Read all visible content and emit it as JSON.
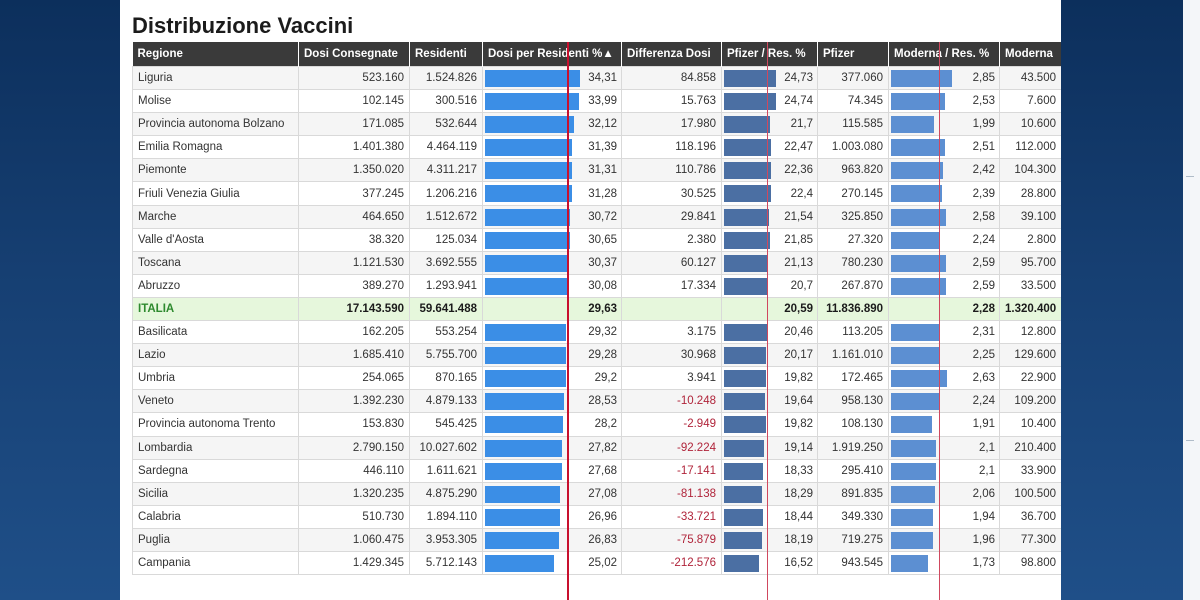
{
  "title": "Distribuzione Vaccini",
  "columns": [
    "Regione",
    "Dosi Consegnate",
    "Residenti",
    "Dosi per Residenti %▲",
    "Differenza Dosi",
    "Pfizer / Res. %",
    "Pfizer",
    "Moderna / Res. %",
    "Moderna"
  ],
  "rows": [
    {
      "regione": "Liguria",
      "consegnate": "523.160",
      "residenti": "1.524.826",
      "pct": "34,31",
      "pct_v": 34.31,
      "diff": "84.858",
      "pf_pct": "24,73",
      "pf_v": 24.73,
      "pfizer": "377.060",
      "mo_pct": "2,85",
      "mo_v": 2.85,
      "moderna": "43.500"
    },
    {
      "regione": "Molise",
      "consegnate": "102.145",
      "residenti": "300.516",
      "pct": "33,99",
      "pct_v": 33.99,
      "diff": "15.763",
      "pf_pct": "24,74",
      "pf_v": 24.74,
      "pfizer": "74.345",
      "mo_pct": "2,53",
      "mo_v": 2.53,
      "moderna": "7.600"
    },
    {
      "regione": "Provincia autonoma Bolzano",
      "consegnate": "171.085",
      "residenti": "532.644",
      "pct": "32,12",
      "pct_v": 32.12,
      "diff": "17.980",
      "pf_pct": "21,7",
      "pf_v": 21.7,
      "pfizer": "115.585",
      "mo_pct": "1,99",
      "mo_v": 1.99,
      "moderna": "10.600"
    },
    {
      "regione": "Emilia Romagna",
      "consegnate": "1.401.380",
      "residenti": "4.464.119",
      "pct": "31,39",
      "pct_v": 31.39,
      "diff": "118.196",
      "pf_pct": "22,47",
      "pf_v": 22.47,
      "pfizer": "1.003.080",
      "mo_pct": "2,51",
      "mo_v": 2.51,
      "moderna": "112.000"
    },
    {
      "regione": "Piemonte",
      "consegnate": "1.350.020",
      "residenti": "4.311.217",
      "pct": "31,31",
      "pct_v": 31.31,
      "diff": "110.786",
      "pf_pct": "22,36",
      "pf_v": 22.36,
      "pfizer": "963.820",
      "mo_pct": "2,42",
      "mo_v": 2.42,
      "moderna": "104.300"
    },
    {
      "regione": "Friuli Venezia Giulia",
      "consegnate": "377.245",
      "residenti": "1.206.216",
      "pct": "31,28",
      "pct_v": 31.28,
      "diff": "30.525",
      "pf_pct": "22,4",
      "pf_v": 22.4,
      "pfizer": "270.145",
      "mo_pct": "2,39",
      "mo_v": 2.39,
      "moderna": "28.800"
    },
    {
      "regione": "Marche",
      "consegnate": "464.650",
      "residenti": "1.512.672",
      "pct": "30,72",
      "pct_v": 30.72,
      "diff": "29.841",
      "pf_pct": "21,54",
      "pf_v": 21.54,
      "pfizer": "325.850",
      "mo_pct": "2,58",
      "mo_v": 2.58,
      "moderna": "39.100"
    },
    {
      "regione": "Valle d'Aosta",
      "consegnate": "38.320",
      "residenti": "125.034",
      "pct": "30,65",
      "pct_v": 30.65,
      "diff": "2.380",
      "pf_pct": "21,85",
      "pf_v": 21.85,
      "pfizer": "27.320",
      "mo_pct": "2,24",
      "mo_v": 2.24,
      "moderna": "2.800"
    },
    {
      "regione": "Toscana",
      "consegnate": "1.121.530",
      "residenti": "3.692.555",
      "pct": "30,37",
      "pct_v": 30.37,
      "diff": "60.127",
      "pf_pct": "21,13",
      "pf_v": 21.13,
      "pfizer": "780.230",
      "mo_pct": "2,59",
      "mo_v": 2.59,
      "moderna": "95.700"
    },
    {
      "regione": "Abruzzo",
      "consegnate": "389.270",
      "residenti": "1.293.941",
      "pct": "30,08",
      "pct_v": 30.08,
      "diff": "17.334",
      "pf_pct": "20,7",
      "pf_v": 20.7,
      "pfizer": "267.870",
      "mo_pct": "2,59",
      "mo_v": 2.59,
      "moderna": "33.500"
    },
    {
      "regione": "ITALIA",
      "consegnate": "17.143.590",
      "residenti": "59.641.488",
      "pct": "29,63",
      "pct_v": null,
      "diff": "",
      "pf_pct": "20,59",
      "pf_v": null,
      "pfizer": "11.836.890",
      "mo_pct": "2,28",
      "mo_v": null,
      "moderna": "1.320.400",
      "total": true
    },
    {
      "regione": "Basilicata",
      "consegnate": "162.205",
      "residenti": "553.254",
      "pct": "29,32",
      "pct_v": 29.32,
      "diff": "3.175",
      "pf_pct": "20,46",
      "pf_v": 20.46,
      "pfizer": "113.205",
      "mo_pct": "2,31",
      "mo_v": 2.31,
      "moderna": "12.800"
    },
    {
      "regione": "Lazio",
      "consegnate": "1.685.410",
      "residenti": "5.755.700",
      "pct": "29,28",
      "pct_v": 29.28,
      "diff": "30.968",
      "pf_pct": "20,17",
      "pf_v": 20.17,
      "pfizer": "1.161.010",
      "mo_pct": "2,25",
      "mo_v": 2.25,
      "moderna": "129.600"
    },
    {
      "regione": "Umbria",
      "consegnate": "254.065",
      "residenti": "870.165",
      "pct": "29,2",
      "pct_v": 29.2,
      "diff": "3.941",
      "pf_pct": "19,82",
      "pf_v": 19.82,
      "pfizer": "172.465",
      "mo_pct": "2,63",
      "mo_v": 2.63,
      "moderna": "22.900"
    },
    {
      "regione": "Veneto",
      "consegnate": "1.392.230",
      "residenti": "4.879.133",
      "pct": "28,53",
      "pct_v": 28.53,
      "diff": "-10.248",
      "pf_pct": "19,64",
      "pf_v": 19.64,
      "pfizer": "958.130",
      "mo_pct": "2,24",
      "mo_v": 2.24,
      "moderna": "109.200"
    },
    {
      "regione": "Provincia autonoma Trento",
      "consegnate": "153.830",
      "residenti": "545.425",
      "pct": "28,2",
      "pct_v": 28.2,
      "diff": "-2.949",
      "pf_pct": "19,82",
      "pf_v": 19.82,
      "pfizer": "108.130",
      "mo_pct": "1,91",
      "mo_v": 1.91,
      "moderna": "10.400"
    },
    {
      "regione": "Lombardia",
      "consegnate": "2.790.150",
      "residenti": "10.027.602",
      "pct": "27,82",
      "pct_v": 27.82,
      "diff": "-92.224",
      "pf_pct": "19,14",
      "pf_v": 19.14,
      "pfizer": "1.919.250",
      "mo_pct": "2,1",
      "mo_v": 2.1,
      "moderna": "210.400"
    },
    {
      "regione": "Sardegna",
      "consegnate": "446.110",
      "residenti": "1.611.621",
      "pct": "27,68",
      "pct_v": 27.68,
      "diff": "-17.141",
      "pf_pct": "18,33",
      "pf_v": 18.33,
      "pfizer": "295.410",
      "mo_pct": "2,1",
      "mo_v": 2.1,
      "moderna": "33.900"
    },
    {
      "regione": "Sicilia",
      "consegnate": "1.320.235",
      "residenti": "4.875.290",
      "pct": "27,08",
      "pct_v": 27.08,
      "diff": "-81.138",
      "pf_pct": "18,29",
      "pf_v": 18.29,
      "pfizer": "891.835",
      "mo_pct": "2,06",
      "mo_v": 2.06,
      "moderna": "100.500"
    },
    {
      "regione": "Calabria",
      "consegnate": "510.730",
      "residenti": "1.894.110",
      "pct": "26,96",
      "pct_v": 26.96,
      "diff": "-33.721",
      "pf_pct": "18,44",
      "pf_v": 18.44,
      "pfizer": "349.330",
      "mo_pct": "1,94",
      "mo_v": 1.94,
      "moderna": "36.700"
    },
    {
      "regione": "Puglia",
      "consegnate": "1.060.475",
      "residenti": "3.953.305",
      "pct": "26,83",
      "pct_v": 26.83,
      "diff": "-75.879",
      "pf_pct": "18,19",
      "pf_v": 18.19,
      "pfizer": "719.275",
      "mo_pct": "1,96",
      "mo_v": 1.96,
      "moderna": "77.300"
    },
    {
      "regione": "Campania",
      "consegnate": "1.429.345",
      "residenti": "5.712.143",
      "pct": "25,02",
      "pct_v": 25.02,
      "diff": "-212.576",
      "pf_pct": "16,52",
      "pf_v": 16.52,
      "pfizer": "943.545",
      "mo_pct": "1,73",
      "mo_v": 1.73,
      "moderna": "98.800"
    }
  ],
  "reference": {
    "pct": 29.63,
    "pf_pct": 20.59,
    "mo_pct": 2.28
  },
  "bar_max": {
    "pct": 34.31,
    "pf_pct": 24.74,
    "mo_pct": 2.85
  },
  "colors": {
    "bar_pct": "#3b8ee6",
    "bar_pfizer": "#4b6fa3",
    "bar_moderna": "#5c8fd2",
    "reference_line": "#c8102e",
    "negative": "#b0243a",
    "total_row_bg": "#e6f7dc"
  }
}
